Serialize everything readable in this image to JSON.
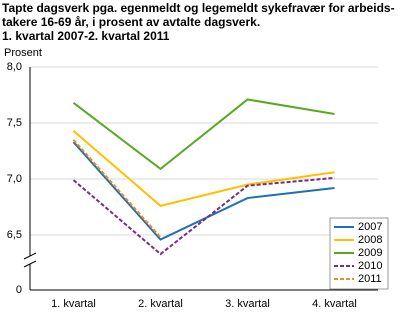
{
  "chart_data": {
    "type": "line",
    "title": [
      "Tapte dagsverk pga. egenmeldt og legemeldt sykefravær for arbeids-",
      "takere 16-69 år, i prosent av avtalte dagsverk.",
      "1. kvartal 2007-2. kvartal 2011"
    ],
    "y_label": "Prosent",
    "categories": [
      "1. kvartal",
      "2. kvartal",
      "3. kvartal",
      "4. kvartal"
    ],
    "series": [
      {
        "name": "2007",
        "color": "#1f6fb5",
        "dashed": false,
        "values": [
          7.33,
          6.46,
          6.83,
          6.92
        ]
      },
      {
        "name": "2008",
        "color": "#ffc000",
        "dashed": false,
        "values": [
          7.43,
          6.76,
          6.95,
          7.06
        ]
      },
      {
        "name": "2009",
        "color": "#5aa820",
        "dashed": false,
        "values": [
          7.68,
          7.09,
          7.71,
          7.58
        ]
      },
      {
        "name": "2010",
        "color": "#7b2c83",
        "dashed": true,
        "values": [
          6.99,
          6.33,
          6.94,
          7.01
        ]
      },
      {
        "name": "2011",
        "color": "#f08a24",
        "dashed": true,
        "values": [
          7.35,
          6.48,
          null,
          null
        ]
      }
    ],
    "ylim": [
      0,
      8.0
    ],
    "yticks": [
      {
        "value": 0,
        "label": "0"
      },
      {
        "value": 6.5,
        "label": "6,5"
      },
      {
        "value": 7.0,
        "label": "7,0"
      },
      {
        "value": 7.5,
        "label": "7,5"
      },
      {
        "value": 8.0,
        "label": "8,0"
      }
    ],
    "axis_break": true,
    "grid": true,
    "legend": "lower right"
  }
}
